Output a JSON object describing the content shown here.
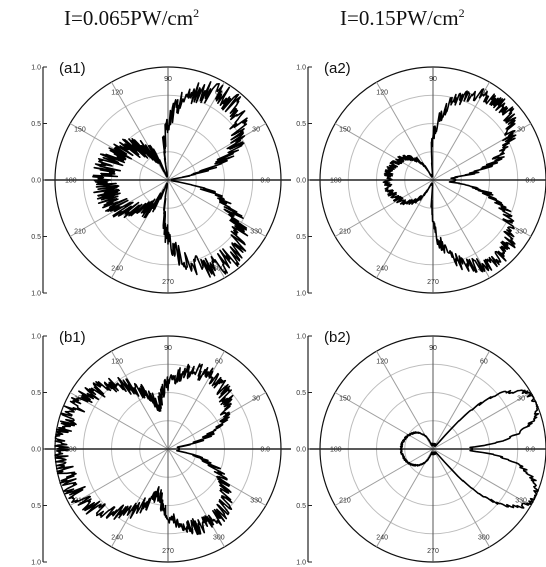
{
  "column_titles": {
    "left": {
      "base": "I=0.065PW/cm",
      "exp": "2"
    },
    "right": {
      "base": "I=0.15PW/cm",
      "exp": "2"
    }
  },
  "chart_data": [
    {
      "type": "polar",
      "label": "(a1)",
      "r_axis_ticks": [
        "1.0",
        "0.5",
        "0.0",
        "0.5",
        "1.0"
      ],
      "rlim": [
        0,
        1
      ],
      "angle_labels": [
        "0",
        "30",
        "60",
        "90",
        "120",
        "150",
        "180",
        "210",
        "240",
        "270",
        "300",
        "330"
      ],
      "angle_label_texts": {
        "0": "0.0",
        "30": "30",
        "60": "60",
        "90": "90",
        "120": "120",
        "150": "150",
        "180": "180",
        "210": "210",
        "240": "240",
        "270": "270",
        "300": "300",
        "330": "330"
      },
      "lobes": [
        {
          "center_deg": 0,
          "halfwidth_deg": 12,
          "r": 0.05
        },
        {
          "center_deg": 55,
          "halfwidth_deg": 45,
          "r": 0.88,
          "noise": 0.12
        },
        {
          "center_deg": 305,
          "halfwidth_deg": 45,
          "r": 0.88,
          "noise": 0.12
        },
        {
          "center_deg": 180,
          "halfwidth_deg": 70,
          "r": 0.55,
          "noise": 0.22
        }
      ]
    },
    {
      "type": "polar",
      "label": "(a2)",
      "r_axis_ticks": [
        "1.0",
        "0.5",
        "0.0",
        "0.5",
        "1.0"
      ],
      "rlim": [
        0,
        1
      ],
      "angle_labels": [
        "0",
        "30",
        "60",
        "90",
        "120",
        "150",
        "180",
        "210",
        "240",
        "270",
        "300",
        "330"
      ],
      "angle_label_texts": {
        "0": "0.0",
        "30": "30",
        "60": "60",
        "90": "90",
        "120": "120",
        "150": "150",
        "180": "180",
        "210": "210",
        "240": "240",
        "270": "270",
        "300": "300",
        "330": "330"
      },
      "lobes": [
        {
          "center_deg": 0,
          "halfwidth_deg": 10,
          "r": 0.2
        },
        {
          "center_deg": 50,
          "halfwidth_deg": 45,
          "r": 0.9,
          "noise": 0.08
        },
        {
          "center_deg": 310,
          "halfwidth_deg": 45,
          "r": 0.9,
          "noise": 0.08
        },
        {
          "center_deg": 180,
          "halfwidth_deg": 65,
          "r": 0.4,
          "noise": 0.1
        }
      ]
    },
    {
      "type": "polar",
      "label": "(b1)",
      "r_axis_ticks": [
        "1.0",
        "0.5",
        "0.0",
        "0.5",
        "1.0"
      ],
      "rlim": [
        0,
        1
      ],
      "angle_labels": [
        "0",
        "30",
        "60",
        "90",
        "120",
        "150",
        "180",
        "210",
        "240",
        "270",
        "300",
        "330"
      ],
      "angle_label_texts": {
        "0": "0.0",
        "30": "30",
        "60": "60",
        "90": "90",
        "120": "120",
        "150": "150",
        "180": "180",
        "210": "210",
        "240": "240",
        "270": "270",
        "300": "300",
        "330": "330"
      },
      "lobes": [
        {
          "center_deg": 0,
          "halfwidth_deg": 20,
          "r": 0.1
        },
        {
          "center_deg": 60,
          "halfwidth_deg": 50,
          "r": 0.75,
          "noise": 0.1
        },
        {
          "center_deg": 300,
          "halfwidth_deg": 50,
          "r": 0.75,
          "noise": 0.1
        },
        {
          "center_deg": 180,
          "halfwidth_deg": 85,
          "r": 0.95,
          "noise": 0.1
        }
      ]
    },
    {
      "type": "polar",
      "label": "(b2)",
      "r_axis_ticks": [
        "1.0",
        "0.5",
        "0.0",
        "0.5",
        "1.0"
      ],
      "rlim": [
        0,
        1
      ],
      "angle_labels": [
        "0",
        "30",
        "60",
        "90",
        "120",
        "150",
        "180",
        "210",
        "240",
        "270",
        "300",
        "330"
      ],
      "angle_label_texts": {
        "0": "0.0",
        "30": "30",
        "60": "60",
        "90": "90",
        "120": "120",
        "150": "150",
        "180": "180",
        "210": "210",
        "240": "240",
        "270": "270",
        "300": "300",
        "330": "330"
      },
      "lobes": [
        {
          "center_deg": 0,
          "halfwidth_deg": 8,
          "r": 0.35
        },
        {
          "center_deg": 25,
          "halfwidth_deg": 24,
          "r": 1.0,
          "noise": 0.03
        },
        {
          "center_deg": 335,
          "halfwidth_deg": 24,
          "r": 1.0,
          "noise": 0.03
        },
        {
          "center_deg": 180,
          "halfwidth_deg": 70,
          "r": 0.28,
          "noise": 0.03
        }
      ]
    }
  ]
}
